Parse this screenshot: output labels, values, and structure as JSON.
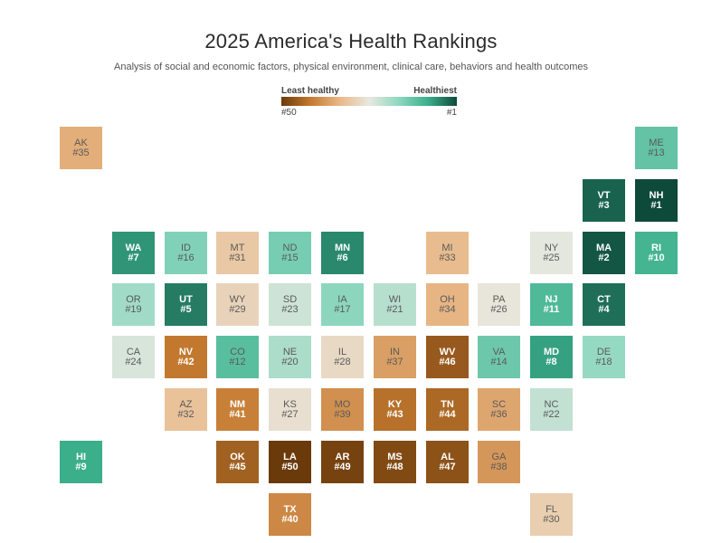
{
  "chart_data": {
    "type": "heatmap",
    "title": "2025 America's Health Rankings",
    "subtitle": "Analysis of social and economic factors, physical environment, clinical care, behaviors and health outcomes",
    "legend": {
      "least_label": "Least healthy",
      "most_label": "Healthiest",
      "least_rank": "#50",
      "most_rank": "#1",
      "colors": [
        "#6b3a0a",
        "#c47a30",
        "#e9b888",
        "#e8e8e0",
        "#8fd8c0",
        "#3cb08c",
        "#0e4a3a"
      ]
    },
    "states": [
      {
        "abbr": "AK",
        "rank": "#35",
        "row": 0,
        "col": 0
      },
      {
        "abbr": "ME",
        "rank": "#13",
        "row": 0,
        "col": 11
      },
      {
        "abbr": "VT",
        "rank": "#3",
        "row": 1,
        "col": 10
      },
      {
        "abbr": "NH",
        "rank": "#1",
        "row": 1,
        "col": 11
      },
      {
        "abbr": "WA",
        "rank": "#7",
        "row": 2,
        "col": 1
      },
      {
        "abbr": "ID",
        "rank": "#16",
        "row": 2,
        "col": 2
      },
      {
        "abbr": "MT",
        "rank": "#31",
        "row": 2,
        "col": 3
      },
      {
        "abbr": "ND",
        "rank": "#15",
        "row": 2,
        "col": 4
      },
      {
        "abbr": "MN",
        "rank": "#6",
        "row": 2,
        "col": 5
      },
      {
        "abbr": "MI",
        "rank": "#33",
        "row": 2,
        "col": 7
      },
      {
        "abbr": "NY",
        "rank": "#25",
        "row": 2,
        "col": 9
      },
      {
        "abbr": "MA",
        "rank": "#2",
        "row": 2,
        "col": 10
      },
      {
        "abbr": "RI",
        "rank": "#10",
        "row": 2,
        "col": 11
      },
      {
        "abbr": "OR",
        "rank": "#19",
        "row": 3,
        "col": 1
      },
      {
        "abbr": "UT",
        "rank": "#5",
        "row": 3,
        "col": 2
      },
      {
        "abbr": "WY",
        "rank": "#29",
        "row": 3,
        "col": 3
      },
      {
        "abbr": "SD",
        "rank": "#23",
        "row": 3,
        "col": 4
      },
      {
        "abbr": "IA",
        "rank": "#17",
        "row": 3,
        "col": 5
      },
      {
        "abbr": "WI",
        "rank": "#21",
        "row": 3,
        "col": 6
      },
      {
        "abbr": "OH",
        "rank": "#34",
        "row": 3,
        "col": 7
      },
      {
        "abbr": "PA",
        "rank": "#26",
        "row": 3,
        "col": 8
      },
      {
        "abbr": "NJ",
        "rank": "#11",
        "row": 3,
        "col": 9
      },
      {
        "abbr": "CT",
        "rank": "#4",
        "row": 3,
        "col": 10
      },
      {
        "abbr": "CA",
        "rank": "#24",
        "row": 4,
        "col": 1
      },
      {
        "abbr": "NV",
        "rank": "#42",
        "row": 4,
        "col": 2
      },
      {
        "abbr": "CO",
        "rank": "#12",
        "row": 4,
        "col": 3
      },
      {
        "abbr": "NE",
        "rank": "#20",
        "row": 4,
        "col": 4
      },
      {
        "abbr": "IL",
        "rank": "#28",
        "row": 4,
        "col": 5
      },
      {
        "abbr": "IN",
        "rank": "#37",
        "row": 4,
        "col": 6
      },
      {
        "abbr": "WV",
        "rank": "#46",
        "row": 4,
        "col": 7
      },
      {
        "abbr": "VA",
        "rank": "#14",
        "row": 4,
        "col": 8
      },
      {
        "abbr": "MD",
        "rank": "#8",
        "row": 4,
        "col": 9
      },
      {
        "abbr": "DE",
        "rank": "#18",
        "row": 4,
        "col": 10
      },
      {
        "abbr": "AZ",
        "rank": "#32",
        "row": 5,
        "col": 2
      },
      {
        "abbr": "NM",
        "rank": "#41",
        "row": 5,
        "col": 3
      },
      {
        "abbr": "KS",
        "rank": "#27",
        "row": 5,
        "col": 4
      },
      {
        "abbr": "MO",
        "rank": "#39",
        "row": 5,
        "col": 5
      },
      {
        "abbr": "KY",
        "rank": "#43",
        "row": 5,
        "col": 6
      },
      {
        "abbr": "TN",
        "rank": "#44",
        "row": 5,
        "col": 7
      },
      {
        "abbr": "SC",
        "rank": "#36",
        "row": 5,
        "col": 8
      },
      {
        "abbr": "NC",
        "rank": "#22",
        "row": 5,
        "col": 9
      },
      {
        "abbr": "HI",
        "rank": "#9",
        "row": 6,
        "col": 0
      },
      {
        "abbr": "OK",
        "rank": "#45",
        "row": 6,
        "col": 3
      },
      {
        "abbr": "LA",
        "rank": "#50",
        "row": 6,
        "col": 4
      },
      {
        "abbr": "AR",
        "rank": "#49",
        "row": 6,
        "col": 5
      },
      {
        "abbr": "MS",
        "rank": "#48",
        "row": 6,
        "col": 6
      },
      {
        "abbr": "AL",
        "rank": "#47",
        "row": 6,
        "col": 7
      },
      {
        "abbr": "GA",
        "rank": "#38",
        "row": 6,
        "col": 8
      },
      {
        "abbr": "TX",
        "rank": "#40",
        "row": 7,
        "col": 4
      },
      {
        "abbr": "FL",
        "rank": "#30",
        "row": 7,
        "col": 9
      }
    ]
  }
}
